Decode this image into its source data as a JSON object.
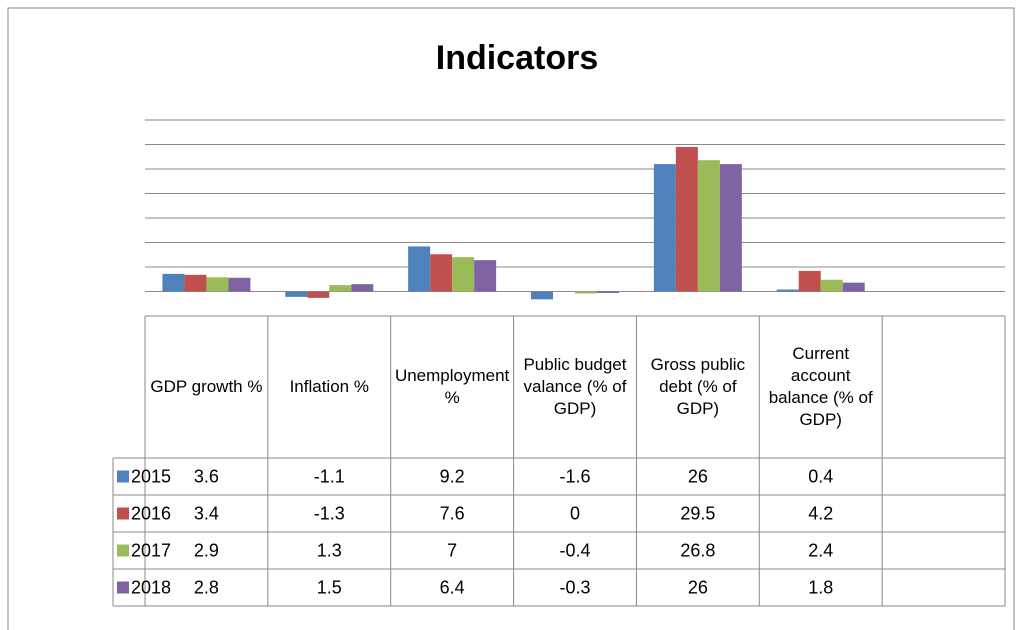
{
  "chart_data": {
    "type": "bar",
    "title": "Indicators",
    "categories": [
      "GDP growth %",
      "Inflation %",
      "Unemployment %",
      "Public budget valance (% of GDP)",
      "Gross public debt (% of GDP)",
      "Current account balance (% of GDP)",
      null
    ],
    "series": [
      {
        "name": "2015",
        "color": "#4f81bd",
        "values": [
          3.6,
          -1.1,
          9.2,
          -1.6,
          26,
          0.4,
          null
        ]
      },
      {
        "name": "2016",
        "color": "#c0504d",
        "values": [
          3.4,
          -1.3,
          7.6,
          0,
          29.5,
          4.2,
          null
        ]
      },
      {
        "name": "2017",
        "color": "#9bbb59",
        "values": [
          2.9,
          1.3,
          7,
          -0.4,
          26.8,
          2.4,
          null
        ]
      },
      {
        "name": "2018",
        "color": "#8064a2",
        "values": [
          2.8,
          1.5,
          6.4,
          -0.3,
          26,
          1.8,
          null
        ]
      }
    ],
    "ylim": [
      -5,
      35
    ],
    "yticks": [
      -5,
      0,
      5,
      10,
      15,
      20,
      25,
      30,
      35
    ],
    "grid": true,
    "data_table": true
  }
}
